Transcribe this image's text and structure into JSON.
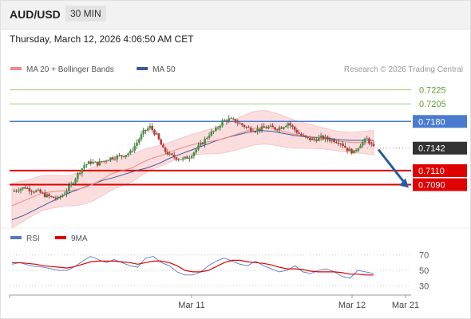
{
  "header": {
    "pair": "AUD/USD",
    "timeframe": "30 MIN"
  },
  "timestamp": "Thursday, March 12, 2026 4:06:50 AM CET",
  "legend": {
    "items": [
      {
        "label": "MA 20 + Bollinger Bands",
        "color": "#f08a8a"
      },
      {
        "label": "MA 50",
        "color": "#3c5a9a"
      }
    ],
    "credit": "Research © 2026 Trading Central"
  },
  "rsi_legend": {
    "items": [
      {
        "label": "RSI",
        "color": "#5577cc"
      },
      {
        "label": "9MA",
        "color": "#e00000"
      }
    ]
  },
  "colors": {
    "resistance_line": "#4a7bd1",
    "support_line": "#e00000",
    "target_line": "#9fcf7a",
    "candle_up": "#3a9a3a",
    "candle_down": "#d03030",
    "band_fill": "#fbdada",
    "arrow": "#2a5aa0"
  },
  "chart_data": [
    {
      "type": "candlestick",
      "title": "",
      "price_range": [
        0.7035,
        0.7245
      ],
      "x_ticks": [
        "Mar 11",
        "Mar 12",
        "Mar 21"
      ],
      "levels": [
        {
          "label": "0.7225",
          "value": 0.7225,
          "kind": "target"
        },
        {
          "label": "0.7205",
          "value": 0.7205,
          "kind": "target"
        },
        {
          "label": "0.7180",
          "value": 0.718,
          "kind": "resistance"
        },
        {
          "label": "0.7142",
          "value": 0.7142,
          "kind": "last_price"
        },
        {
          "label": "0.7110",
          "value": 0.711,
          "kind": "support"
        },
        {
          "label": "0.7090",
          "value": 0.709,
          "kind": "support"
        }
      ],
      "close_path": [
        0.708,
        0.7084,
        0.7086,
        0.7082,
        0.708,
        0.7075,
        0.7072,
        0.707,
        0.7078,
        0.709,
        0.7105,
        0.7118,
        0.7122,
        0.712,
        0.7124,
        0.7128,
        0.713,
        0.7132,
        0.7136,
        0.715,
        0.7165,
        0.7172,
        0.716,
        0.714,
        0.7132,
        0.7128,
        0.7126,
        0.713,
        0.714,
        0.715,
        0.7162,
        0.7168,
        0.718,
        0.7183,
        0.718,
        0.7175,
        0.717,
        0.7168,
        0.717,
        0.7172,
        0.717,
        0.7172,
        0.7178,
        0.7168,
        0.716,
        0.7155,
        0.7154,
        0.7157,
        0.7155,
        0.7153,
        0.715,
        0.714,
        0.7136,
        0.7148,
        0.7155,
        0.7142
      ],
      "ma20_path": [
        0.706,
        0.7066,
        0.7072,
        0.7078,
        0.708,
        0.7081,
        0.7082,
        0.7085,
        0.709,
        0.7098,
        0.7106,
        0.711,
        0.7114,
        0.7122,
        0.7128,
        0.7132,
        0.7138,
        0.7143,
        0.7147,
        0.715,
        0.7152,
        0.7155,
        0.716,
        0.7165,
        0.717,
        0.7172,
        0.717,
        0.7166,
        0.7162,
        0.716,
        0.7158,
        0.7156,
        0.7153,
        0.7151,
        0.715,
        0.715,
        0.715
      ],
      "ma50_path": [
        0.704,
        0.7046,
        0.7054,
        0.7062,
        0.707,
        0.7078,
        0.7084,
        0.709,
        0.7096,
        0.71,
        0.7105,
        0.711,
        0.7114,
        0.712,
        0.7128,
        0.7134,
        0.714,
        0.7146,
        0.7152,
        0.7157,
        0.7161,
        0.7165,
        0.7167,
        0.7166,
        0.7163,
        0.716,
        0.7158,
        0.7157,
        0.7156,
        0.7154,
        0.7153,
        0.7153,
        0.7153
      ],
      "forecast": {
        "from": 0.714,
        "to": 0.709
      }
    },
    {
      "type": "line",
      "title": "",
      "series": [
        {
          "name": "RSI",
          "values": [
            58,
            60,
            57,
            55,
            54,
            52,
            50,
            50,
            55,
            62,
            68,
            64,
            60,
            64,
            60,
            56,
            54,
            66,
            68,
            60,
            56,
            48,
            44,
            44,
            48,
            56,
            62,
            66,
            62,
            58,
            56,
            62,
            56,
            52,
            48,
            50,
            56,
            48,
            46,
            50,
            52,
            48,
            42,
            40,
            50,
            48,
            46
          ]
        },
        {
          "name": "9MA",
          "values": [
            60,
            60,
            59,
            58,
            56,
            55,
            54,
            53,
            55,
            58,
            61,
            62,
            62,
            62,
            61,
            60,
            58,
            60,
            62,
            62,
            60,
            56,
            50,
            48,
            48,
            50,
            55,
            60,
            63,
            63,
            61,
            60,
            59,
            57,
            54,
            52,
            52,
            51,
            49,
            48,
            48,
            48,
            47,
            45,
            45,
            44,
            44
          ]
        }
      ],
      "ylim": [
        20,
        80
      ],
      "y_ticks": [
        70,
        50,
        30
      ]
    }
  ]
}
